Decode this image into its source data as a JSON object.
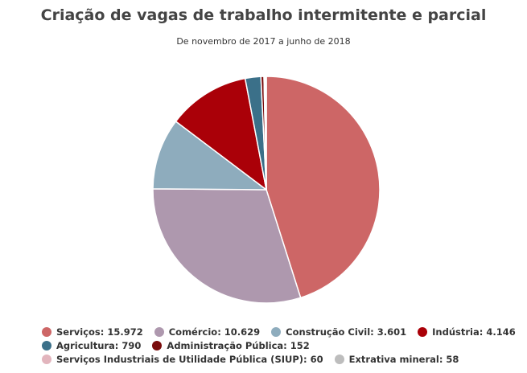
{
  "chart_data": {
    "type": "pie",
    "title": "Criação de vagas de trabalho intermitente e parcial",
    "subtitle": "De novembro de 2017 a junho de 2018",
    "slices": [
      {
        "name": "Serviços",
        "value": 15972,
        "label": "Serviços: 15.972",
        "color": "#cd6666"
      },
      {
        "name": "Comércio",
        "value": 10629,
        "label": "Comércio: 10.629",
        "color": "#ae98ae"
      },
      {
        "name": "Construção Civil",
        "value": 3601,
        "label": "Construção Civil: 3.601",
        "color": "#8eacbd"
      },
      {
        "name": "Indústria",
        "value": 4146,
        "label": "Indústria: 4.146",
        "color": "#aa0008"
      },
      {
        "name": "Agricultura",
        "value": 790,
        "label": "Agricultura: 790",
        "color": "#3b7089"
      },
      {
        "name": "Administração Pública",
        "value": 152,
        "label": "Administração Pública: 152",
        "color": "#7a0c0c"
      },
      {
        "name": "Serviços Industriais de Utilidade Pública (SIUP)",
        "value": 60,
        "label": "Serviços Industriais de Utilidade Pública (SIUP): 60",
        "color": "#e2b5bd"
      },
      {
        "name": "Extrativa mineral",
        "value": 58,
        "label": "Extrativa mineral: 58",
        "color": "#bdbdbd"
      }
    ],
    "legend_position": "bottom"
  }
}
